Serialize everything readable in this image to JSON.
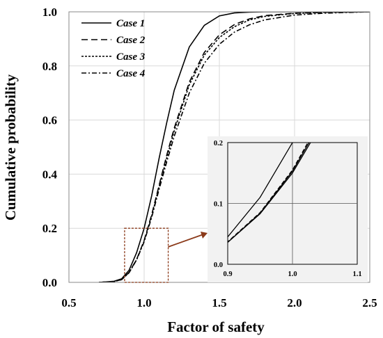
{
  "chart_data": {
    "type": "line",
    "title": "",
    "xlabel": "Factor of safety",
    "ylabel": "Cumulative probability",
    "xlim": [
      0.5,
      2.5
    ],
    "ylim": [
      0.0,
      1.0
    ],
    "x_ticks": [
      "0.5",
      "1.0",
      "1.5",
      "2.0",
      "2.5"
    ],
    "y_ticks": [
      "0.0",
      "0.2",
      "0.4",
      "0.6",
      "0.8",
      "1.0"
    ],
    "grid": true,
    "legend_position": "top-left",
    "x": [
      0.7,
      0.8,
      0.85,
      0.9,
      0.95,
      1.0,
      1.05,
      1.1,
      1.15,
      1.2,
      1.3,
      1.4,
      1.5,
      1.6,
      1.7,
      1.8,
      2.0,
      2.2,
      2.5
    ],
    "series": [
      {
        "name": "Case 1",
        "style": "solid",
        "values": [
          0.0,
          0.004,
          0.013,
          0.045,
          0.11,
          0.2,
          0.32,
          0.46,
          0.59,
          0.71,
          0.87,
          0.95,
          0.985,
          0.996,
          0.999,
          1.0,
          1.0,
          1.0,
          1.0
        ]
      },
      {
        "name": "Case 2",
        "style": "dashed",
        "values": [
          0.0,
          0.003,
          0.01,
          0.037,
          0.085,
          0.155,
          0.25,
          0.36,
          0.47,
          0.57,
          0.74,
          0.85,
          0.915,
          0.953,
          0.974,
          0.986,
          0.995,
          0.998,
          1.0
        ]
      },
      {
        "name": "Case 3",
        "style": "dotted",
        "values": [
          0.0,
          0.003,
          0.01,
          0.036,
          0.084,
          0.153,
          0.245,
          0.355,
          0.46,
          0.56,
          0.73,
          0.84,
          0.905,
          0.945,
          0.97,
          0.983,
          0.994,
          0.998,
          1.0
        ]
      },
      {
        "name": "Case 4",
        "style": "dashdot",
        "values": [
          0.0,
          0.003,
          0.01,
          0.036,
          0.083,
          0.15,
          0.24,
          0.345,
          0.445,
          0.54,
          0.7,
          0.81,
          0.88,
          0.925,
          0.952,
          0.97,
          0.988,
          0.995,
          1.0
        ]
      }
    ],
    "zoom_box": {
      "xlim": [
        0.87,
        1.16
      ],
      "ylim": [
        0.0,
        0.2
      ]
    },
    "inset": {
      "xlim": [
        0.9,
        1.1
      ],
      "ylim": [
        0.0,
        0.2
      ],
      "x_ticks": [
        "0.9",
        "1.0",
        "1.1"
      ],
      "y_ticks": [
        "0.0",
        "0.1",
        "0.2"
      ],
      "background": "#f2f2f2"
    },
    "colors": {
      "zoom_box": "#8b3a1a",
      "grid": "#d9d9d9",
      "lines": "#000000"
    }
  }
}
